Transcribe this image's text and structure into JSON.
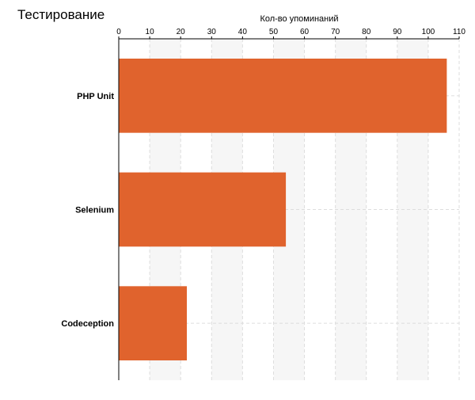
{
  "page": {
    "title": "Тестирование"
  },
  "colors": {
    "bar": "#e0632d",
    "band": "#f6f6f6",
    "grid": "#dddddd",
    "axis": "#000000"
  },
  "chart_data": {
    "type": "bar",
    "orientation": "horizontal",
    "title": "",
    "xlabel": "Кол-во упоминаний",
    "ylabel": "",
    "categories": [
      "PHP Unit",
      "Selenium",
      "Codeception"
    ],
    "values": [
      106,
      54,
      22
    ],
    "xlim": [
      0,
      110
    ],
    "xticks": [
      0,
      10,
      20,
      30,
      40,
      50,
      60,
      70,
      80,
      90,
      100,
      110
    ],
    "xtick_labels": [
      "0",
      "10",
      "20",
      "30",
      "40",
      "50",
      "60",
      "70",
      "80",
      "90",
      "100",
      "110"
    ],
    "x_axis_position": "top",
    "grid": true,
    "alternating_bands": true,
    "legend": "none"
  }
}
